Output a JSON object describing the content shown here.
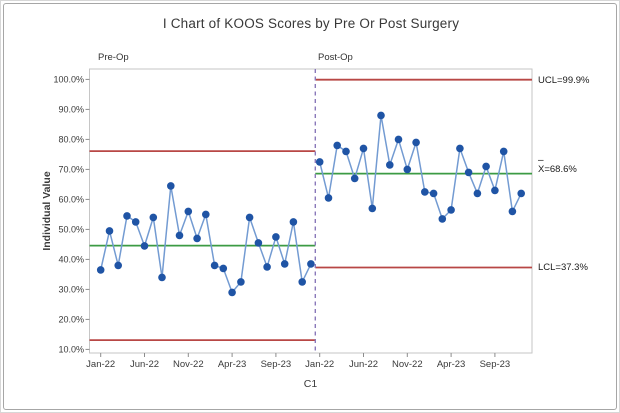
{
  "window": {
    "title": "I Chart of KOOS Scores by Pre Or Post Surgery"
  },
  "chart_data": {
    "type": "line",
    "subtype": "individuals-control-chart",
    "title": "I Chart of KOOS Scores by Pre Or Post Surgery",
    "xlabel": "C1",
    "ylabel": "Individual Value",
    "ylim": [
      10,
      100
    ],
    "grid": false,
    "legend": false,
    "y_tick_values": [
      100,
      90,
      80,
      70,
      60,
      50,
      40,
      30,
      20,
      10
    ],
    "y_tick_labels": [
      "100.0%",
      "90.0%",
      "80.0%",
      "70.0%",
      "60.0%",
      "50.0%",
      "40.0%",
      "30.0%",
      "20.0%",
      "10.0%"
    ],
    "stages": [
      {
        "label": "Pre-Op",
        "x_tick_labels": [
          "Jan-22",
          "Jun-22",
          "Nov-22",
          "Apr-23",
          "Sep-23"
        ],
        "values": [
          36.5,
          49.5,
          38,
          54.5,
          52.5,
          44.5,
          54,
          34,
          64.5,
          48,
          56,
          47,
          55,
          38,
          37,
          29,
          32.5,
          54,
          45.5,
          37.5,
          47.5,
          38.5,
          52.5,
          32.5,
          38.5
        ],
        "center": 44.6,
        "ucl": 76.1,
        "lcl": 13.1
      },
      {
        "label": "Post-Op",
        "x_tick_labels": [
          "Jan-22",
          "Jun-22",
          "Nov-22",
          "Apr-23",
          "Sep-23"
        ],
        "values": [
          72.5,
          60.5,
          78,
          76,
          67,
          77,
          57,
          88,
          71.5,
          80,
          70,
          79,
          62.5,
          62,
          53.5,
          56.5,
          77,
          69,
          62,
          71,
          63,
          76,
          56,
          62
        ],
        "center": 68.6,
        "ucl": 99.9,
        "lcl": 37.3
      }
    ],
    "right_labels": [
      {
        "text": "UCL=99.9%",
        "value": 99.9
      },
      {
        "text": "X=68.6%",
        "bar": "–",
        "value": 68.6
      },
      {
        "text": "LCL=37.3%",
        "value": 37.3
      }
    ],
    "colors": {
      "series_line": "#739bd2",
      "marker": "#1f54a5",
      "limit_line": "#b84745",
      "center_line": "#3c9b44",
      "stage_divider": "#8a79ba",
      "axis_text": "#3a3a3a",
      "plot_border": "#c6c6c6",
      "tick_mark": "#8c8c8c"
    }
  }
}
